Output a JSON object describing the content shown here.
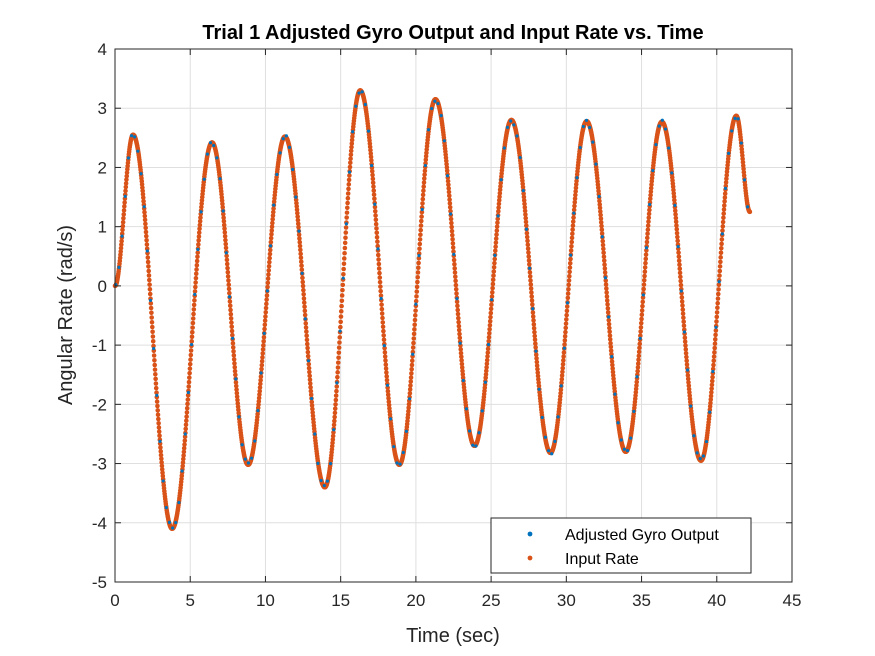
{
  "chart_data": {
    "type": "scatter",
    "title": "Trial 1 Adjusted Gyro Output and Input Rate vs. Time",
    "xlabel": "Time (sec)",
    "ylabel": "Angular Rate (rad/s)",
    "xlim": [
      0,
      45
    ],
    "ylim": [
      -5,
      4
    ],
    "xticks": [
      "0",
      "5",
      "10",
      "15",
      "20",
      "25",
      "30",
      "35",
      "40",
      "45"
    ],
    "yticks": [
      "-5",
      "-4",
      "-3",
      "-2",
      "-1",
      "0",
      "1",
      "2",
      "3",
      "4"
    ],
    "grid": true,
    "legend_position": "bottom-right",
    "signal_extrema": {
      "t": [
        0,
        1.2,
        3.8,
        6.45,
        8.85,
        11.3,
        13.95,
        16.3,
        18.9,
        21.3,
        23.9,
        26.35,
        28.95,
        31.35,
        33.95,
        36.35,
        38.95,
        41.3,
        42.2
      ],
      "rate": [
        0,
        2.55,
        -4.1,
        2.42,
        -3.02,
        2.52,
        -3.4,
        3.3,
        -3.02,
        3.15,
        -2.7,
        2.8,
        -2.82,
        2.78,
        -2.8,
        2.77,
        -2.95,
        2.87,
        1.25
      ]
    },
    "series": [
      {
        "name": "Adjusted Gyro Output",
        "color": "#0072BD",
        "marker": "point"
      },
      {
        "name": "Input Rate",
        "color": "#D95319",
        "marker": "point"
      }
    ]
  }
}
